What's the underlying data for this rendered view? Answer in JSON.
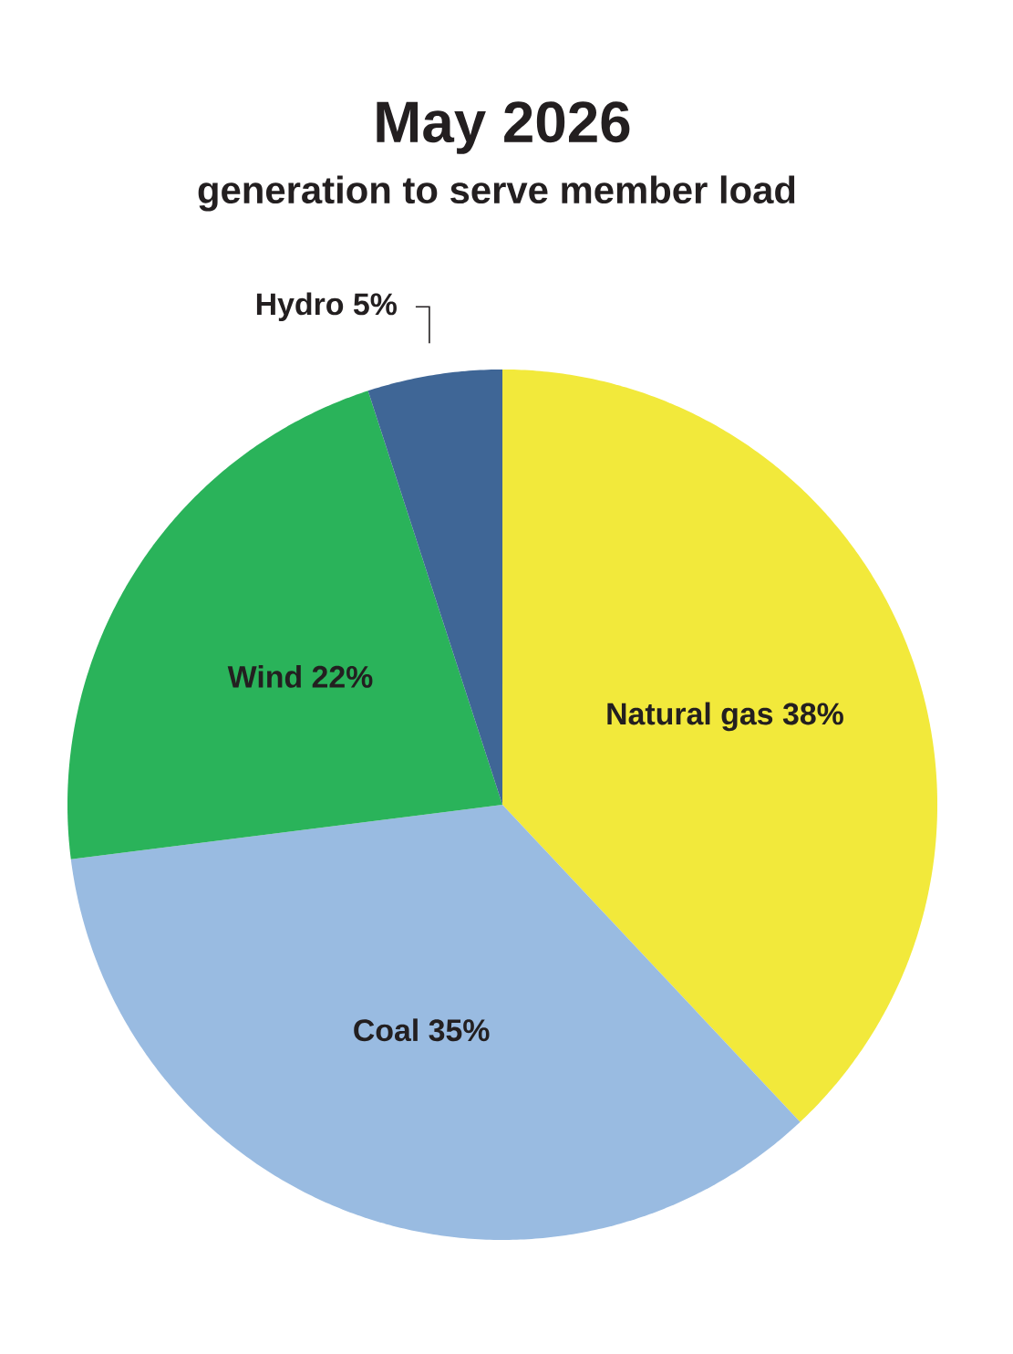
{
  "chart_data": {
    "type": "pie",
    "title": "May 2026",
    "subtitle": "generation to serve member load",
    "categories": [
      "Natural gas",
      "Coal",
      "Wind",
      "Hydro"
    ],
    "values": [
      38,
      35,
      22,
      5
    ],
    "value_labels": [
      "38%",
      "35%",
      "22%",
      "5%"
    ],
    "colors": [
      "#f2e93b",
      "#99bbe1",
      "#2ab35a",
      "#3f6696"
    ]
  }
}
